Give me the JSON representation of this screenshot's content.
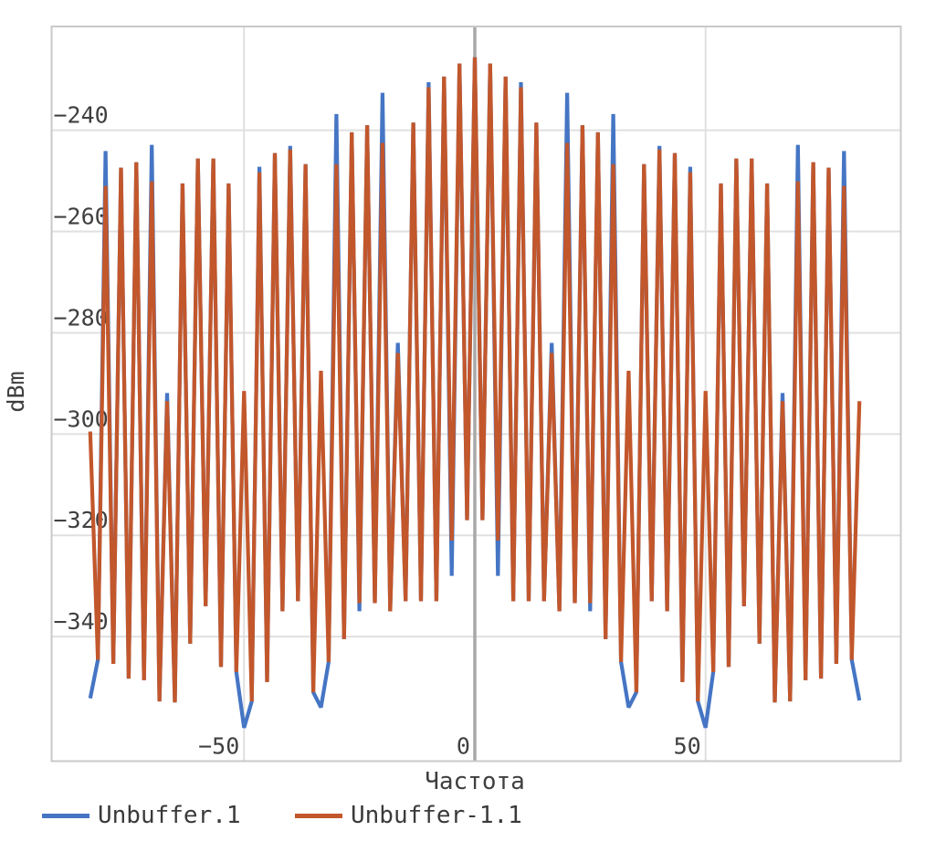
{
  "chart_data": {
    "type": "line",
    "title": "",
    "xlabel": "Частота",
    "ylabel": "dBm",
    "xlim": [
      -91.7,
      92.3
    ],
    "ylim": [
      -364.6,
      -219.5
    ],
    "x_ticks": [
      -50,
      0,
      50
    ],
    "y_ticks": [
      -240,
      -260,
      -280,
      -300,
      -320,
      -340
    ],
    "grid": true,
    "zero_frequency_axis": 0,
    "legend_position": "bottom-left",
    "style": {
      "blue": "#4575c4",
      "orange": "#c2572c",
      "grid_color": "#e0e0e0",
      "zero_axis_color": "#a8a8a8",
      "border_color": "#c9c9c9",
      "text_color": "#3f3f3f",
      "line_width": 4.2
    },
    "series": [
      {
        "name": "Unbuffer.1",
        "color": "#4575c4",
        "points": [
          [
            -83.33,
            -352.2
          ],
          [
            -81.67,
            -344.6
          ],
          [
            -80,
            -244.1
          ],
          [
            -78.33,
            -345.4
          ],
          [
            -76.67,
            -247.4
          ],
          [
            -75,
            -348.3
          ],
          [
            -73.33,
            -246.3
          ],
          [
            -71.67,
            -348.6
          ],
          [
            -70,
            -242.9
          ],
          [
            -68.33,
            -352.8
          ],
          [
            -66.67,
            -291.9
          ],
          [
            -65,
            -353
          ],
          [
            -63.33,
            -250.5
          ],
          [
            -61.67,
            -341.4
          ],
          [
            -60,
            -245.6
          ],
          [
            -58.33,
            -334
          ],
          [
            -56.67,
            -245.6
          ],
          [
            -55,
            -346
          ],
          [
            -53.33,
            -250.5
          ],
          [
            -51.67,
            -347
          ],
          [
            -50,
            -358
          ],
          [
            -48.33,
            -352.8
          ],
          [
            -46.67,
            -247.2
          ],
          [
            -45,
            -349
          ],
          [
            -43.33,
            -244.5
          ],
          [
            -41.67,
            -335
          ],
          [
            -40,
            -243.1
          ],
          [
            -38.33,
            -333
          ],
          [
            -36.67,
            -246.7
          ],
          [
            -35,
            -351
          ],
          [
            -33.33,
            -354
          ],
          [
            -31.67,
            -345
          ],
          [
            -30,
            -236.8
          ],
          [
            -28.33,
            -340.5
          ],
          [
            -26.67,
            -240.4
          ],
          [
            -25,
            -335
          ],
          [
            -23.33,
            -239
          ],
          [
            -21.67,
            -333.4
          ],
          [
            -20,
            -232.6
          ],
          [
            -18.33,
            -335
          ],
          [
            -16.67,
            -282
          ],
          [
            -15,
            -333
          ],
          [
            -13.33,
            -238.5
          ],
          [
            -11.67,
            -333
          ],
          [
            -10,
            -230.5
          ],
          [
            -8.33,
            -333
          ],
          [
            -6.67,
            -229.4
          ],
          [
            -5,
            -328
          ],
          [
            -3.33,
            -226.8
          ],
          [
            -1.67,
            -317
          ],
          [
            0,
            -225.6
          ],
          [
            1.67,
            -317
          ],
          [
            3.33,
            -226.8
          ],
          [
            5,
            -328
          ],
          [
            6.67,
            -229.4
          ],
          [
            8.33,
            -333
          ],
          [
            10,
            -230.5
          ],
          [
            11.67,
            -333
          ],
          [
            13.33,
            -238.5
          ],
          [
            15,
            -333
          ],
          [
            16.67,
            -282
          ],
          [
            18.33,
            -335
          ],
          [
            20,
            -232.6
          ],
          [
            21.67,
            -333.4
          ],
          [
            23.33,
            -239
          ],
          [
            25,
            -335
          ],
          [
            26.67,
            -240.4
          ],
          [
            28.33,
            -340.5
          ],
          [
            30,
            -236.8
          ],
          [
            31.67,
            -345
          ],
          [
            33.33,
            -354
          ],
          [
            35,
            -351
          ],
          [
            36.67,
            -246.7
          ],
          [
            38.33,
            -333
          ],
          [
            40,
            -243.1
          ],
          [
            41.67,
            -335
          ],
          [
            43.33,
            -244.5
          ],
          [
            45,
            -349
          ],
          [
            46.67,
            -247.2
          ],
          [
            48.33,
            -352.8
          ],
          [
            50,
            -358
          ],
          [
            51.67,
            -347
          ],
          [
            53.33,
            -250.5
          ],
          [
            55,
            -346
          ],
          [
            56.67,
            -245.6
          ],
          [
            58.33,
            -334
          ],
          [
            60,
            -245.6
          ],
          [
            61.67,
            -341.4
          ],
          [
            63.33,
            -250.5
          ],
          [
            65,
            -353
          ],
          [
            66.67,
            -291.9
          ],
          [
            68.33,
            -352.8
          ],
          [
            70,
            -242.9
          ],
          [
            71.67,
            -348.6
          ],
          [
            73.33,
            -246.3
          ],
          [
            75,
            -348.3
          ],
          [
            76.67,
            -247.4
          ],
          [
            78.33,
            -345.4
          ],
          [
            80,
            -244.1
          ],
          [
            81.67,
            -344.6
          ],
          [
            83.33,
            -352.6
          ]
        ]
      },
      {
        "name": "Unbuffer-1.1",
        "color": "#c2572c",
        "points": [
          [
            -83.33,
            -299.5
          ],
          [
            -81.67,
            -344.6
          ],
          [
            -80,
            -251
          ],
          [
            -78.33,
            -345.4
          ],
          [
            -76.67,
            -247.4
          ],
          [
            -75,
            -348.3
          ],
          [
            -73.33,
            -246.3
          ],
          [
            -71.67,
            -348.6
          ],
          [
            -70,
            -250.1
          ],
          [
            -68.33,
            -352.8
          ],
          [
            -66.67,
            -293.5
          ],
          [
            -65,
            -353
          ],
          [
            -63.33,
            -250.5
          ],
          [
            -61.67,
            -341.4
          ],
          [
            -60,
            -245.6
          ],
          [
            -58.33,
            -334
          ],
          [
            -56.67,
            -245.6
          ],
          [
            -55,
            -346
          ],
          [
            -53.33,
            -250.5
          ],
          [
            -51.67,
            -347
          ],
          [
            -50,
            -291.5
          ],
          [
            -48.33,
            -352.8
          ],
          [
            -46.67,
            -248.3
          ],
          [
            -45,
            -349
          ],
          [
            -43.33,
            -244.5
          ],
          [
            -41.67,
            -335
          ],
          [
            -40,
            -243.8
          ],
          [
            -38.33,
            -333
          ],
          [
            -36.67,
            -246.7
          ],
          [
            -35,
            -351
          ],
          [
            -33.33,
            -287.5
          ],
          [
            -31.67,
            -345
          ],
          [
            -30,
            -246.7
          ],
          [
            -28.33,
            -340.5
          ],
          [
            -26.67,
            -240.4
          ],
          [
            -25,
            -333.4
          ],
          [
            -23.33,
            -239
          ],
          [
            -21.67,
            -333.4
          ],
          [
            -20,
            -242.5
          ],
          [
            -18.33,
            -335
          ],
          [
            -16.67,
            -284
          ],
          [
            -15,
            -333
          ],
          [
            -13.33,
            -238.5
          ],
          [
            -11.67,
            -333
          ],
          [
            -10,
            -231.5
          ],
          [
            -8.33,
            -333
          ],
          [
            -6.67,
            -229.4
          ],
          [
            -5,
            -321
          ],
          [
            -3.33,
            -226.8
          ],
          [
            -1.67,
            -317
          ],
          [
            0,
            -225.6
          ],
          [
            1.67,
            -317
          ],
          [
            3.33,
            -226.8
          ],
          [
            5,
            -321
          ],
          [
            6.67,
            -229.4
          ],
          [
            8.33,
            -333
          ],
          [
            10,
            -231.5
          ],
          [
            11.67,
            -333
          ],
          [
            13.33,
            -238.5
          ],
          [
            15,
            -333
          ],
          [
            16.67,
            -284
          ],
          [
            18.33,
            -335
          ],
          [
            20,
            -242.5
          ],
          [
            21.67,
            -333.4
          ],
          [
            23.33,
            -239
          ],
          [
            25,
            -333.4
          ],
          [
            26.67,
            -240.4
          ],
          [
            28.33,
            -340.5
          ],
          [
            30,
            -246.7
          ],
          [
            31.67,
            -345
          ],
          [
            33.33,
            -287.5
          ],
          [
            35,
            -351
          ],
          [
            36.67,
            -246.7
          ],
          [
            38.33,
            -333
          ],
          [
            40,
            -243.8
          ],
          [
            41.67,
            -335
          ],
          [
            43.33,
            -244.5
          ],
          [
            45,
            -349
          ],
          [
            46.67,
            -248.3
          ],
          [
            48.33,
            -352.8
          ],
          [
            50,
            -291.5
          ],
          [
            51.67,
            -347
          ],
          [
            53.33,
            -250.5
          ],
          [
            55,
            -346
          ],
          [
            56.67,
            -245.6
          ],
          [
            58.33,
            -334
          ],
          [
            60,
            -245.6
          ],
          [
            61.67,
            -341.4
          ],
          [
            63.33,
            -250.5
          ],
          [
            65,
            -353
          ],
          [
            66.67,
            -293.5
          ],
          [
            68.33,
            -352.8
          ],
          [
            70,
            -250.1
          ],
          [
            71.67,
            -348.6
          ],
          [
            73.33,
            -246.3
          ],
          [
            75,
            -348.3
          ],
          [
            76.67,
            -247.4
          ],
          [
            78.33,
            -345.4
          ],
          [
            80,
            -251
          ],
          [
            81.67,
            -344.6
          ],
          [
            83.33,
            -293.5
          ]
        ]
      }
    ]
  }
}
